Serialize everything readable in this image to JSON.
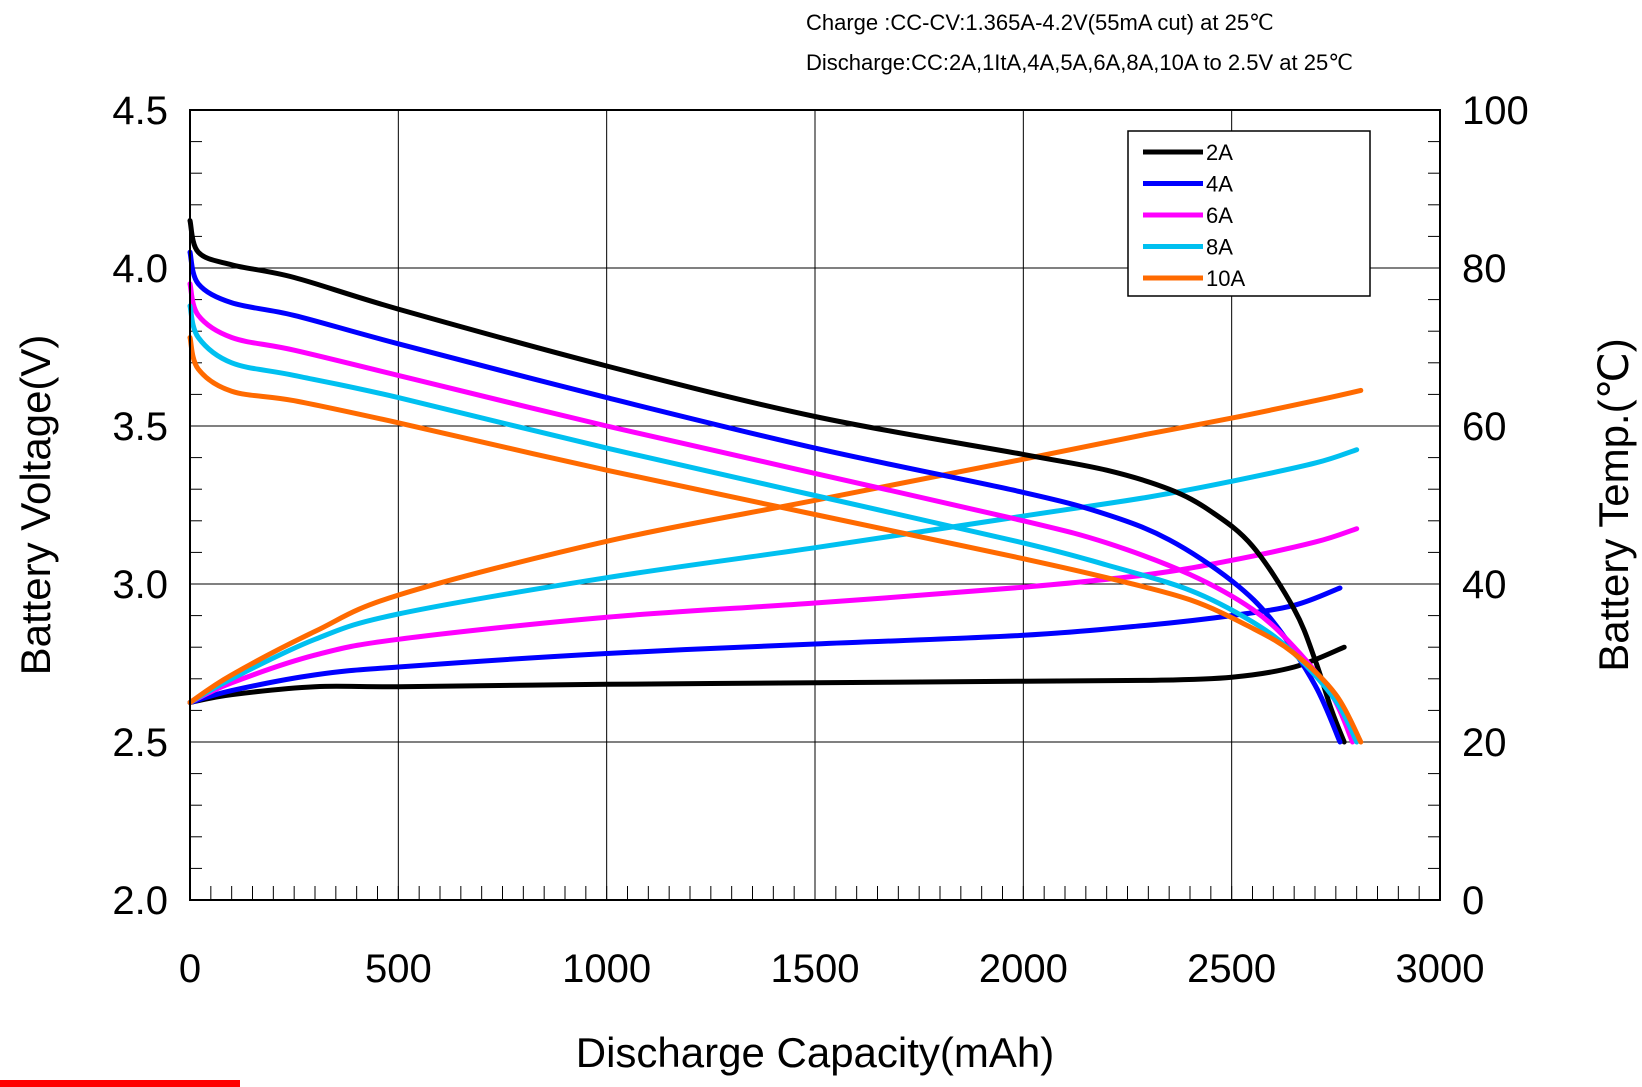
{
  "chart_data": {
    "type": "line",
    "notes": [
      "Charge :CC-CV:1.365A-4.2V(55mA cut) at 25℃",
      "Discharge:CC:2A,1ItA,4A,5A,6A,8A,10A to 2.5V at 25℃"
    ],
    "xlabel": "Discharge Capacity(mAh)",
    "ylabel": "Battery Voltage(V)",
    "y2label": "Battery Temp.(℃)",
    "xlim": [
      0,
      3000
    ],
    "ylim": [
      2.0,
      4.5
    ],
    "y2lim": [
      0,
      100
    ],
    "x_ticks": [
      "0",
      "500",
      "1000",
      "1500",
      "2000",
      "2500",
      "3000"
    ],
    "y_ticks": [
      "2.0",
      "2.5",
      "3.0",
      "3.5",
      "4.0",
      "4.5"
    ],
    "y2_ticks": [
      "0",
      "20",
      "40",
      "60",
      "80",
      "100"
    ],
    "grid": true,
    "legend_position": "top-right",
    "series": [
      {
        "name": "2A",
        "color": "#000000",
        "voltage": [
          [
            0,
            4.15
          ],
          [
            20,
            4.05
          ],
          [
            100,
            4.01
          ],
          [
            250,
            3.97
          ],
          [
            500,
            3.87
          ],
          [
            1000,
            3.69
          ],
          [
            1500,
            3.53
          ],
          [
            2000,
            3.41
          ],
          [
            2200,
            3.36
          ],
          [
            2350,
            3.3
          ],
          [
            2450,
            3.23
          ],
          [
            2550,
            3.12
          ],
          [
            2650,
            2.92
          ],
          [
            2700,
            2.76
          ],
          [
            2740,
            2.6
          ],
          [
            2770,
            2.5
          ]
        ],
        "temp": [
          [
            0,
            25
          ],
          [
            100,
            26
          ],
          [
            300,
            27
          ],
          [
            500,
            27
          ],
          [
            1000,
            27.3
          ],
          [
            1500,
            27.5
          ],
          [
            2000,
            27.7
          ],
          [
            2300,
            27.8
          ],
          [
            2500,
            28.2
          ],
          [
            2650,
            29.5
          ],
          [
            2770,
            32
          ]
        ]
      },
      {
        "name": "4A",
        "color": "#0000ff",
        "voltage": [
          [
            0,
            4.05
          ],
          [
            20,
            3.95
          ],
          [
            100,
            3.89
          ],
          [
            250,
            3.85
          ],
          [
            500,
            3.76
          ],
          [
            1000,
            3.59
          ],
          [
            1500,
            3.43
          ],
          [
            2000,
            3.29
          ],
          [
            2200,
            3.22
          ],
          [
            2350,
            3.14
          ],
          [
            2500,
            3.01
          ],
          [
            2600,
            2.88
          ],
          [
            2700,
            2.68
          ],
          [
            2760,
            2.5
          ]
        ],
        "temp": [
          [
            0,
            25
          ],
          [
            100,
            26.5
          ],
          [
            300,
            28.5
          ],
          [
            500,
            29.5
          ],
          [
            1000,
            31.2
          ],
          [
            1500,
            32.4
          ],
          [
            2000,
            33.5
          ],
          [
            2300,
            34.8
          ],
          [
            2500,
            36
          ],
          [
            2650,
            37.3
          ],
          [
            2760,
            39.5
          ]
        ]
      },
      {
        "name": "6A",
        "color": "#ff00ff",
        "voltage": [
          [
            0,
            3.95
          ],
          [
            20,
            3.85
          ],
          [
            100,
            3.78
          ],
          [
            250,
            3.74
          ],
          [
            500,
            3.66
          ],
          [
            1000,
            3.5
          ],
          [
            1500,
            3.35
          ],
          [
            2000,
            3.2
          ],
          [
            2200,
            3.13
          ],
          [
            2400,
            3.03
          ],
          [
            2550,
            2.92
          ],
          [
            2650,
            2.8
          ],
          [
            2740,
            2.65
          ],
          [
            2790,
            2.5
          ]
        ],
        "temp": [
          [
            0,
            25
          ],
          [
            100,
            27.5
          ],
          [
            300,
            31
          ],
          [
            500,
            33
          ],
          [
            1000,
            35.8
          ],
          [
            1500,
            37.6
          ],
          [
            2000,
            39.6
          ],
          [
            2300,
            41.2
          ],
          [
            2500,
            43
          ],
          [
            2700,
            45.3
          ],
          [
            2800,
            47
          ]
        ]
      },
      {
        "name": "8A",
        "color": "#00c0f0",
        "voltage": [
          [
            0,
            3.88
          ],
          [
            20,
            3.78
          ],
          [
            100,
            3.7
          ],
          [
            250,
            3.66
          ],
          [
            500,
            3.59
          ],
          [
            1000,
            3.43
          ],
          [
            1500,
            3.28
          ],
          [
            2000,
            3.13
          ],
          [
            2200,
            3.06
          ],
          [
            2400,
            2.98
          ],
          [
            2550,
            2.88
          ],
          [
            2650,
            2.78
          ],
          [
            2750,
            2.63
          ],
          [
            2800,
            2.5
          ]
        ],
        "temp": [
          [
            0,
            25
          ],
          [
            100,
            28
          ],
          [
            300,
            33
          ],
          [
            500,
            36.2
          ],
          [
            1000,
            40.8
          ],
          [
            1500,
            44.6
          ],
          [
            2000,
            48.6
          ],
          [
            2300,
            51
          ],
          [
            2500,
            53
          ],
          [
            2700,
            55.3
          ],
          [
            2800,
            57
          ]
        ]
      },
      {
        "name": "10A",
        "color": "#ff6a00",
        "voltage": [
          [
            0,
            3.78
          ],
          [
            20,
            3.68
          ],
          [
            100,
            3.61
          ],
          [
            250,
            3.58
          ],
          [
            500,
            3.51
          ],
          [
            1000,
            3.36
          ],
          [
            1500,
            3.22
          ],
          [
            2000,
            3.08
          ],
          [
            2200,
            3.02
          ],
          [
            2400,
            2.95
          ],
          [
            2550,
            2.86
          ],
          [
            2650,
            2.78
          ],
          [
            2750,
            2.65
          ],
          [
            2810,
            2.5
          ]
        ],
        "temp": [
          [
            0,
            25
          ],
          [
            100,
            28.5
          ],
          [
            300,
            34
          ],
          [
            500,
            38.6
          ],
          [
            1000,
            45.4
          ],
          [
            1500,
            50.6
          ],
          [
            2000,
            55.8
          ],
          [
            2300,
            59
          ],
          [
            2500,
            61
          ],
          [
            2700,
            63.2
          ],
          [
            2810,
            64.5
          ]
        ]
      }
    ]
  }
}
